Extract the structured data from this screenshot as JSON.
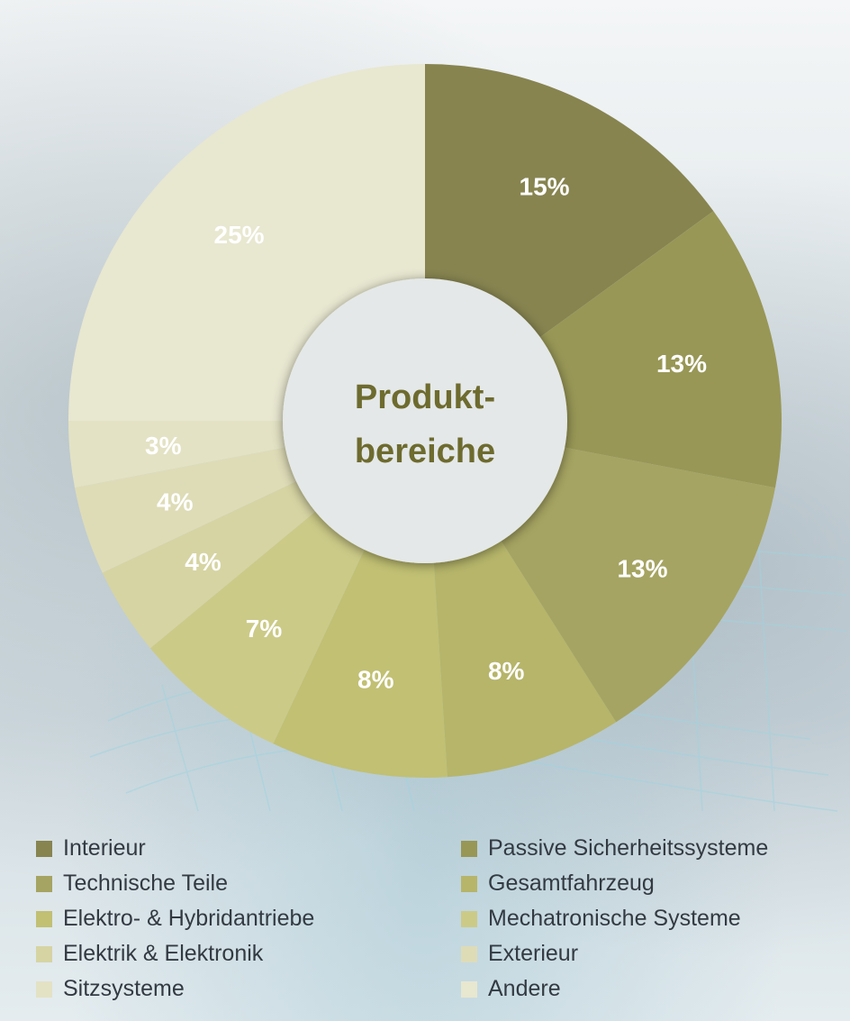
{
  "chart_data": {
    "type": "pie",
    "center_label_lines": [
      "Produkt-",
      "bereiche"
    ],
    "slices": [
      {
        "name": "Interieur",
        "value": 15,
        "label": "15%",
        "color": "#878450"
      },
      {
        "name": "Passive Sicherheitssysteme",
        "value": 13,
        "label": "13%",
        "color": "#989756"
      },
      {
        "name": "Technische Teile",
        "value": 13,
        "label": "13%",
        "color": "#a6a462"
      },
      {
        "name": "Gesamtfahrzeug",
        "value": 8,
        "label": "8%",
        "color": "#b6b56a"
      },
      {
        "name": "Elektro- & Hybridantriebe",
        "value": 8,
        "label": "8%",
        "color": "#c1c073"
      },
      {
        "name": "Mechatronische Systeme",
        "value": 7,
        "label": "7%",
        "color": "#ccca87"
      },
      {
        "name": "Elektrik & Elektronik",
        "value": 4,
        "label": "4%",
        "color": "#d6d4a3"
      },
      {
        "name": "Exterieur",
        "value": 4,
        "label": "4%",
        "color": "#dedcb7"
      },
      {
        "name": "Sitzsysteme",
        "value": 3,
        "label": "3%",
        "color": "#e3e2c4"
      },
      {
        "name": "Andere",
        "value": 25,
        "label": "25%",
        "color": "#e8e7d0"
      }
    ],
    "legend_placement": "bottom",
    "legend_order": [
      "Interieur",
      "Passive Sicherheitssysteme",
      "Technische Teile",
      "Gesamtfahrzeug",
      "Elektro- & Hybridantriebe",
      "Mechatronische Systeme",
      "Elektrik & Elektronik",
      "Exterieur",
      "Sitzsysteme",
      "Andere"
    ]
  }
}
